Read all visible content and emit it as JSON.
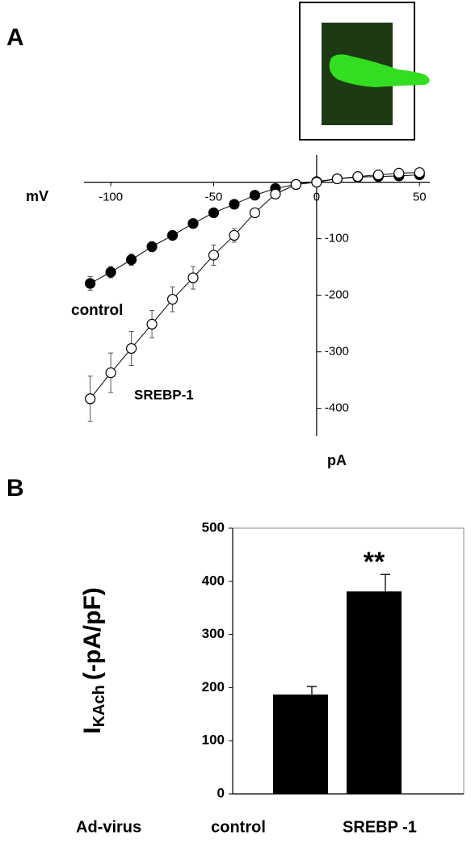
{
  "chart_data": [
    {
      "type": "line",
      "panel": "A",
      "x_label": "mV",
      "y_label": "pA",
      "x": [
        -110,
        -100,
        -90,
        -80,
        -70,
        -60,
        -50,
        -40,
        -30,
        -20,
        -10,
        0,
        10,
        20,
        30,
        40,
        50
      ],
      "series": [
        {
          "name": "control",
          "color": "#000000",
          "values": [
            -179,
            -159,
            -137,
            -114,
            -94,
            -73,
            -54,
            -39,
            -23,
            -11,
            -4,
            1,
            6,
            9,
            10,
            11,
            13
          ],
          "errors": [
            12,
            10,
            10,
            9,
            8,
            8,
            7,
            6,
            5,
            4,
            3,
            3,
            3,
            3,
            3,
            3,
            3
          ]
        },
        {
          "name": "SREBP-1",
          "color": "#ffffff",
          "values": [
            -383,
            -337,
            -294,
            -251,
            -207,
            -169,
            -129,
            -94,
            -54,
            -21,
            -4,
            0,
            6,
            10,
            13,
            16,
            17
          ],
          "errors": [
            40,
            35,
            30,
            24,
            22,
            20,
            18,
            12,
            8,
            5,
            3,
            3,
            3,
            3,
            3,
            3,
            3
          ]
        }
      ],
      "xlim": [
        -113,
        55
      ],
      "ylim": [
        -449,
        48
      ],
      "xticks": [
        -100,
        -50,
        0,
        50
      ],
      "yticks": [
        -400,
        -300,
        -200,
        -100
      ]
    },
    {
      "type": "bar",
      "panel": "B",
      "y_label": {
        "main": "I",
        "sub": "KAch",
        "rest": "(-pA/pF)"
      },
      "x_label": "Ad-virus",
      "categories": [
        "control",
        "SREBP -1"
      ],
      "values": [
        187,
        381
      ],
      "errors": [
        15,
        32
      ],
      "color": "#000000",
      "annotation": "**",
      "ylim": [
        0,
        500
      ],
      "yticks": [
        0,
        100,
        200,
        300,
        400,
        500
      ]
    }
  ]
}
